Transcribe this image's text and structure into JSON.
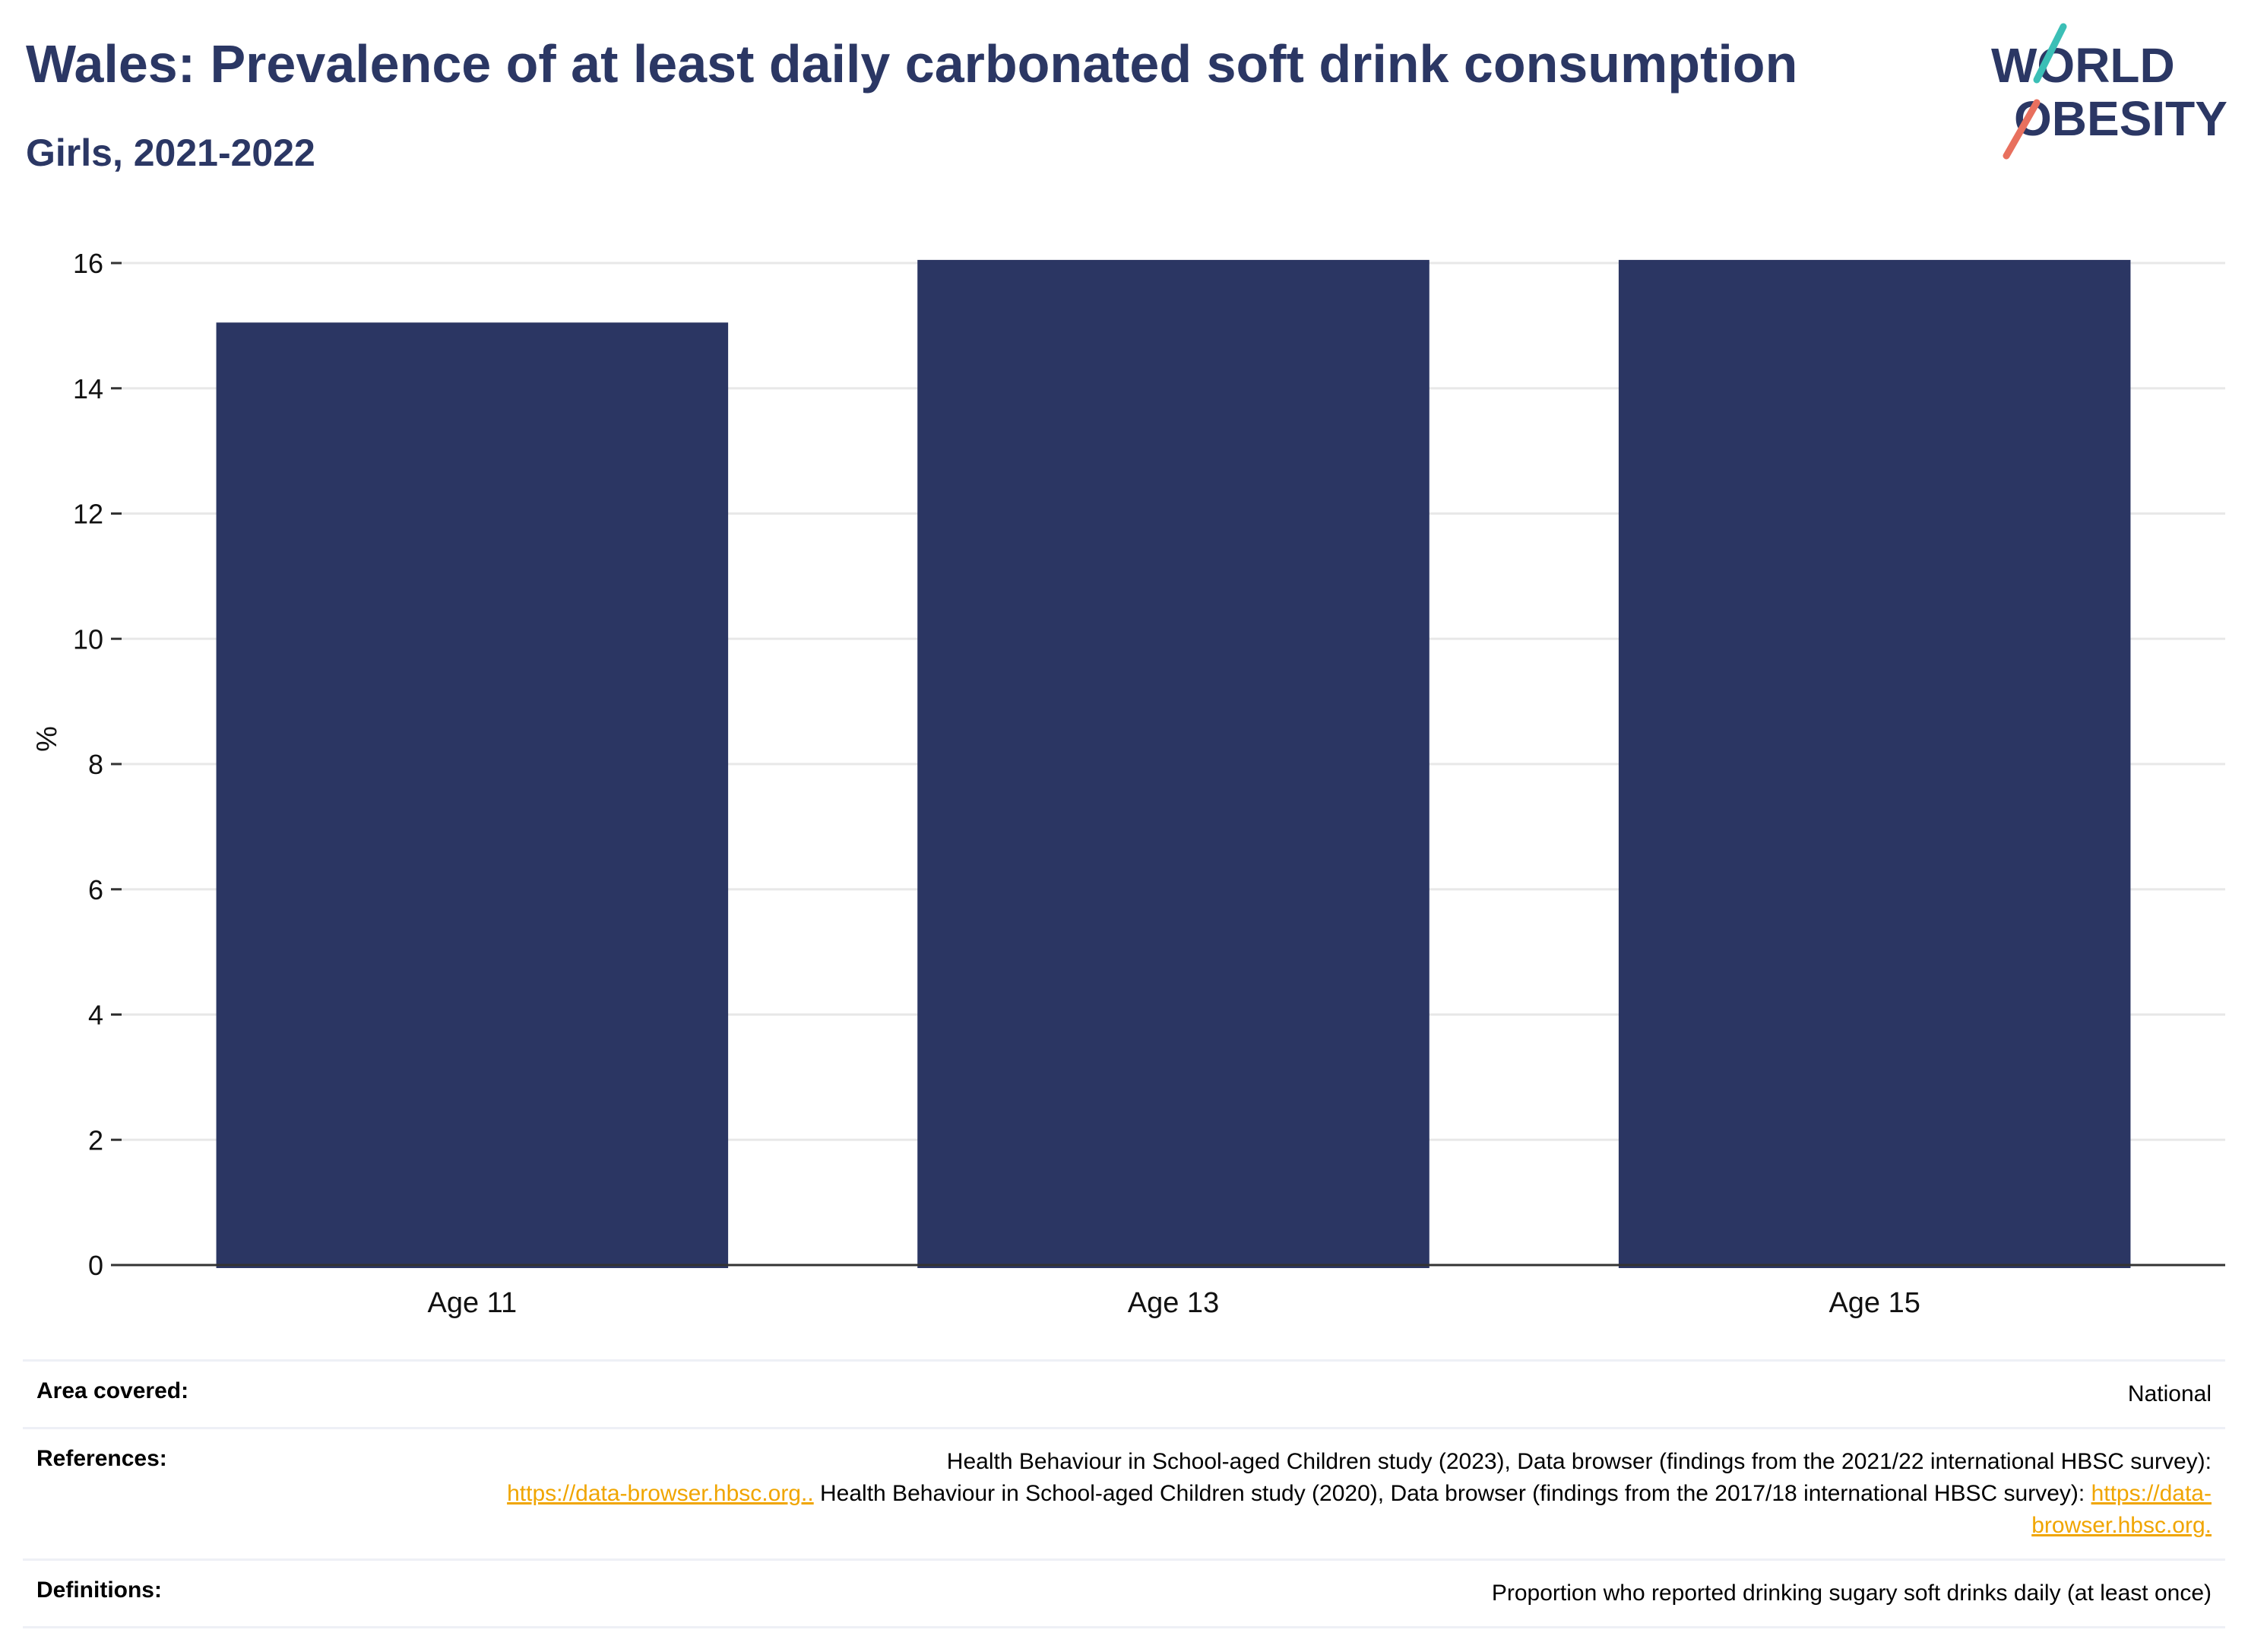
{
  "header": {
    "title": "Wales: Prevalence of at least daily carbonated soft drink consumption",
    "subtitle": "Girls, 2021-2022"
  },
  "logo": {
    "line1": "WORLD",
    "line2": "OBESITY",
    "icon": "world-obesity-logo"
  },
  "colors": {
    "bar": "#2b3663",
    "title": "#2b3764",
    "link": "#f0a500",
    "grid": "#e8e8e8",
    "logo_teal": "#3bbfb6",
    "logo_coral": "#e8705e"
  },
  "chart_data": {
    "type": "bar",
    "categories": [
      "Age 11",
      "Age 13",
      "Age 15"
    ],
    "values": [
      15.05,
      16.05,
      16.05
    ],
    "ylabel": "%",
    "ylim": [
      0,
      16
    ],
    "yticks": [
      0,
      2,
      4,
      6,
      8,
      10,
      12,
      14,
      16
    ],
    "grid": true
  },
  "meta": {
    "area_label": "Area covered:",
    "area_value": "National",
    "references_label": "References:",
    "ref_text_1": "Health Behaviour in School-aged Children study (2023), Data browser (findings from the 2021/22 international HBSC survey):",
    "ref_link_1": "https://data-browser.hbsc.org..",
    "ref_text_2": " Health Behaviour in School-aged Children study (2020), Data browser (findings from the 2017/18 international HBSC survey): ",
    "ref_link_2": "https://data-browser.hbsc.org.",
    "definitions_label": "Definitions:",
    "definitions_value": "Proportion who reported drinking sugary soft drinks daily (at least once)"
  }
}
